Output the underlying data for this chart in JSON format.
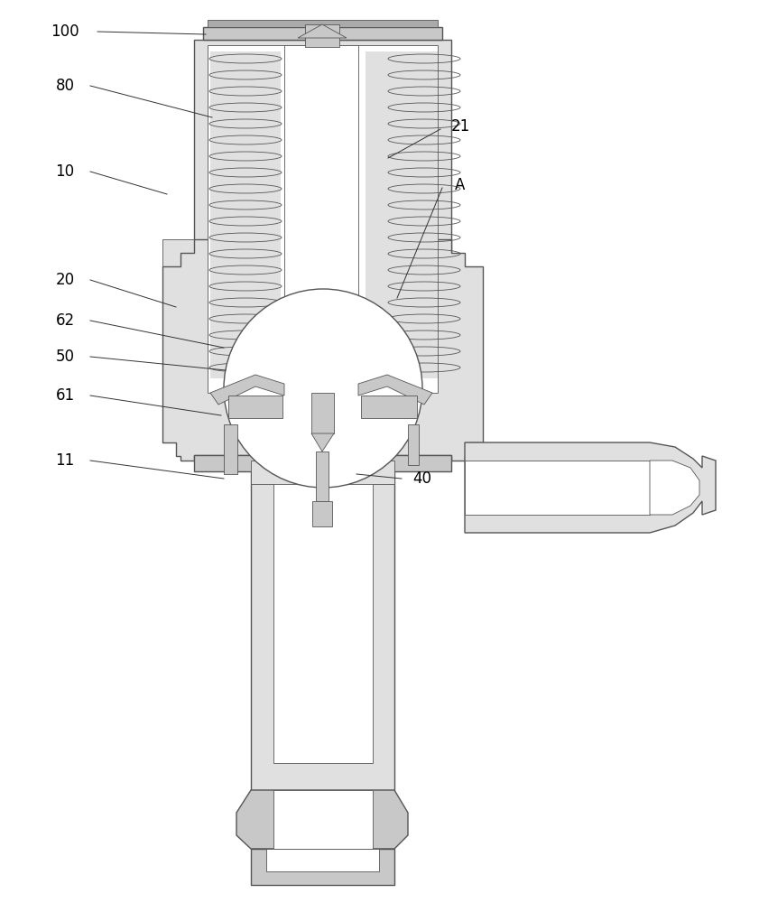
{
  "bg_color": "#ffffff",
  "lc": "#555555",
  "fill_light": "#e0e0e0",
  "fill_medium": "#c8c8c8",
  "fill_dark": "#aaaaaa",
  "label_color": "#000000",
  "ann_color": "#333333",
  "figw": 8.41,
  "figh": 10.0,
  "dpi": 100
}
